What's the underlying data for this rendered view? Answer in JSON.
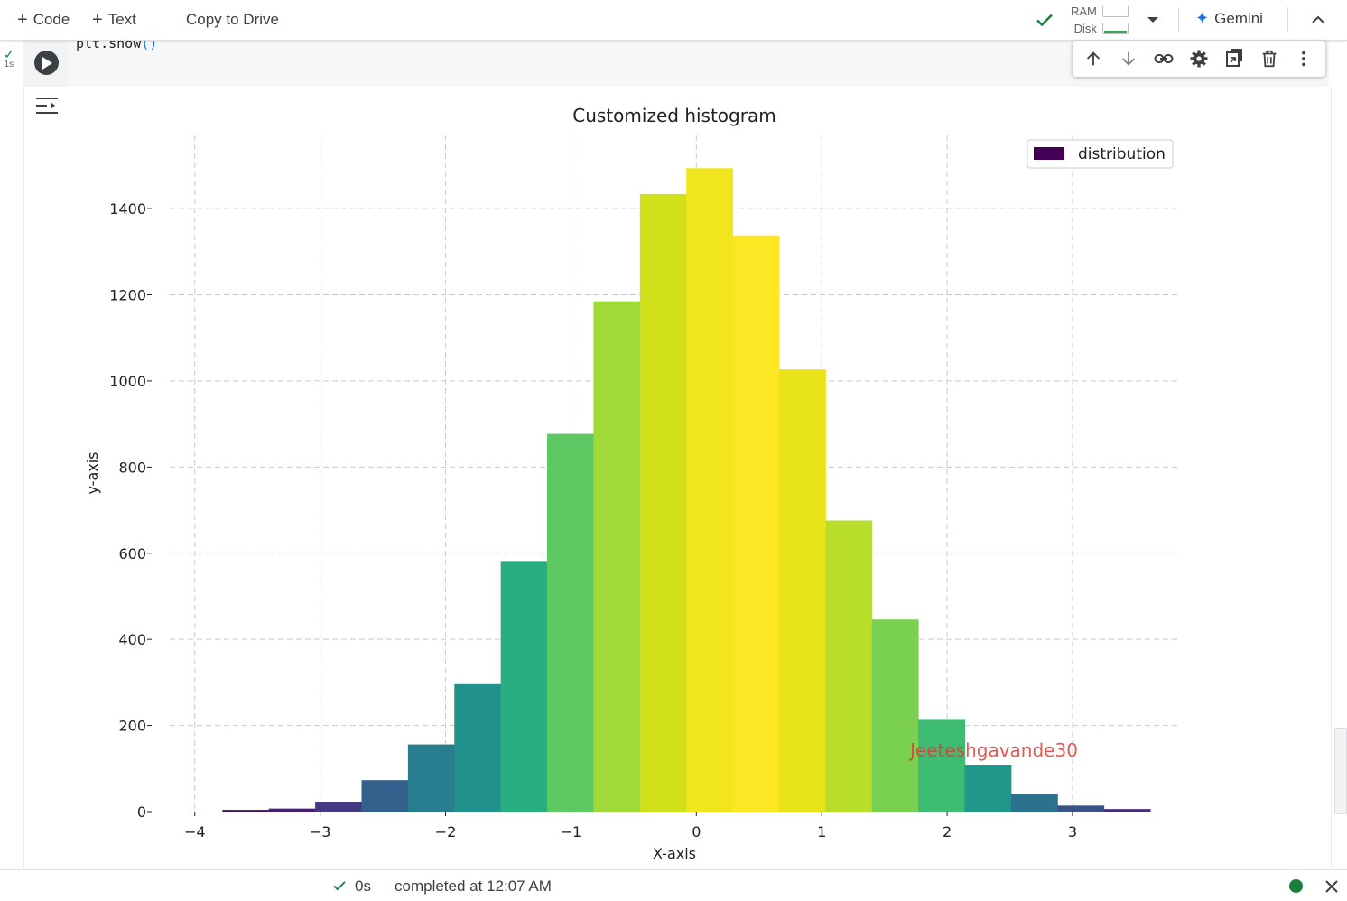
{
  "toolbar": {
    "add_code_label": "Code",
    "add_text_label": "Text",
    "copy_to_drive_label": "Copy to Drive",
    "ram_label": "RAM",
    "disk_label": "Disk",
    "gemini_label": "Gemini"
  },
  "cell": {
    "exec_time": "1s",
    "code": "plt.show",
    "code_parens": "()"
  },
  "status_bar": {
    "duration": "0s",
    "completed": "completed at 12:07 AM"
  },
  "chart_data": {
    "type": "bar",
    "title": "Customized histogram",
    "xlabel": "X-axis",
    "ylabel": "y-axis",
    "xlim": [
      -4.2,
      3.85
    ],
    "ylim": [
      0,
      1570
    ],
    "grid": true,
    "legend": {
      "entries": [
        "distribution"
      ],
      "position": "top-right",
      "color": "#440154"
    },
    "watermark": "Jeeteshgavande30",
    "xticks": [
      -4,
      -3,
      -2,
      -1,
      0,
      1,
      2,
      3
    ],
    "xtick_labels": [
      "−4",
      "−3",
      "−2",
      "−1",
      "0",
      "1",
      "2",
      "3"
    ],
    "yticks": [
      0,
      200,
      400,
      600,
      800,
      1000,
      1200,
      1400
    ],
    "bin_edges": [
      -3.78,
      -3.41,
      -3.04,
      -2.67,
      -2.3,
      -1.93,
      -1.56,
      -1.19,
      -0.82,
      -0.45,
      -0.08,
      0.29,
      0.66,
      1.03,
      1.4,
      1.77,
      2.14,
      2.51,
      2.88,
      3.25,
      3.62
    ],
    "values": [
      4,
      7,
      23,
      73,
      156,
      296,
      582,
      877,
      1185,
      1434,
      1494,
      1338,
      1027,
      676,
      446,
      215,
      109,
      40,
      14,
      6
    ],
    "colors": [
      "#471164",
      "#481f70",
      "#443983",
      "#34608d",
      "#287d8e",
      "#21918c",
      "#29af7f",
      "#5ec962",
      "#a0da39",
      "#d0e11c",
      "#f1e51d",
      "#fde725",
      "#e8e419",
      "#b8de29",
      "#7ad151",
      "#3fbc73",
      "#1f988b",
      "#2c728e",
      "#3b528b",
      "#472d7b"
    ]
  }
}
